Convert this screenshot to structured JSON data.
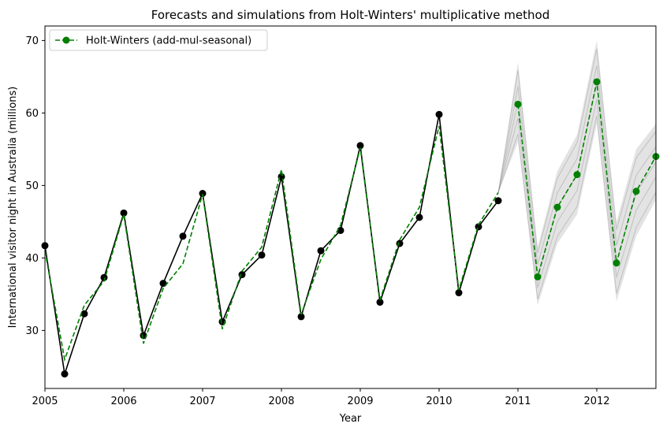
{
  "chart_data": {
    "type": "line",
    "title": "Forecasts and simulations from Holt-Winters' multiplicative method",
    "xlabel": "Year",
    "ylabel": "International visitor night in Australia (millions)",
    "xlim": [
      2005.0,
      2012.75
    ],
    "ylim": [
      22,
      72
    ],
    "xticks": [
      2005,
      2006,
      2007,
      2008,
      2009,
      2010,
      2011,
      2012
    ],
    "yticks": [
      30,
      40,
      50,
      60,
      70
    ],
    "legend": {
      "position": "top-left",
      "label": "Holt-Winters (add-mul-seasonal)"
    },
    "colors": {
      "observed": "#000000",
      "fitted": "#008000",
      "simulations": "#808080"
    },
    "observed": {
      "x": [
        2005.0,
        2005.25,
        2005.5,
        2005.75,
        2006.0,
        2006.25,
        2006.5,
        2006.75,
        2007.0,
        2007.25,
        2007.5,
        2007.75,
        2008.0,
        2008.25,
        2008.5,
        2008.75,
        2009.0,
        2009.25,
        2009.5,
        2009.75,
        2010.0,
        2010.25,
        2010.5,
        2010.75
      ],
      "y": [
        41.7,
        24.0,
        32.3,
        37.3,
        46.2,
        29.3,
        36.5,
        43.0,
        48.9,
        31.2,
        37.7,
        40.4,
        51.2,
        31.9,
        41.0,
        43.8,
        55.5,
        33.9,
        42.0,
        45.6,
        59.8,
        35.2,
        44.3,
        47.9
      ]
    },
    "fitted": {
      "x": [
        2005.0,
        2005.25,
        2005.5,
        2005.75,
        2006.0,
        2006.25,
        2006.5,
        2006.75,
        2007.0,
        2007.25,
        2007.5,
        2007.75,
        2008.0,
        2008.25,
        2008.5,
        2008.75,
        2009.0,
        2009.25,
        2009.5,
        2009.75,
        2010.0,
        2010.25,
        2010.5,
        2010.75
      ],
      "y": [
        41.0,
        26.0,
        33.5,
        36.8,
        46.0,
        28.2,
        35.8,
        39.2,
        48.8,
        30.2,
        38.2,
        41.5,
        52.2,
        32.2,
        39.8,
        44.5,
        55.2,
        34.2,
        42.5,
        47.0,
        58.2,
        35.6,
        44.6,
        49.0
      ]
    },
    "forecast": {
      "x": [
        2011.0,
        2011.25,
        2011.5,
        2011.75,
        2012.0,
        2012.25,
        2012.5,
        2012.75
      ],
      "y": [
        61.2,
        37.4,
        47.0,
        51.5,
        64.3,
        39.3,
        49.2,
        54.0
      ]
    },
    "simulation_band": {
      "x": [
        2010.75,
        2011.0,
        2011.25,
        2011.5,
        2011.75,
        2012.0,
        2012.25,
        2012.5,
        2012.75
      ],
      "low": [
        49.0,
        56.0,
        33.5,
        42.0,
        46.0,
        58.5,
        34.0,
        43.0,
        48.0
      ],
      "high": [
        49.0,
        67.0,
        41.5,
        52.0,
        57.0,
        70.0,
        45.0,
        55.0,
        58.5
      ]
    }
  }
}
